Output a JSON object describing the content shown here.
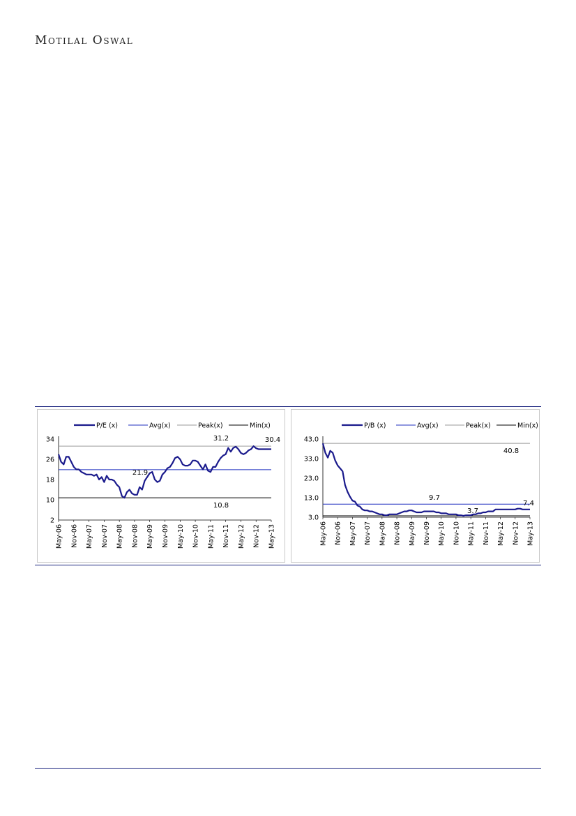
{
  "header": {
    "brand": "Motilal Oswal"
  },
  "chart_data": [
    {
      "type": "line",
      "legend": [
        "P/E (x)",
        "Avg(x)",
        "Peak(x)",
        "Min(x)"
      ],
      "x_tick_labels": [
        "May-06",
        "Nov-06",
        "May-07",
        "Nov-07",
        "May-08",
        "Nov-08",
        "May-09",
        "Nov-09",
        "May-10",
        "Nov-10",
        "May-11",
        "Nov-11",
        "May-12",
        "Nov-12",
        "May-13"
      ],
      "y_tick_labels": [
        "34",
        "26",
        "18",
        "10",
        "2"
      ],
      "ylim": [
        2,
        34
      ],
      "series": [
        {
          "name": "P/E (x)",
          "x": [
            0,
            1,
            2,
            3,
            4,
            5,
            6,
            7,
            8,
            9,
            10,
            11,
            12,
            13,
            14,
            15,
            16,
            17,
            18,
            19,
            20,
            21,
            22,
            23,
            24,
            25,
            26,
            27,
            28,
            29,
            30,
            31,
            32,
            33,
            34,
            35,
            36,
            37,
            38,
            39,
            40,
            41,
            42,
            43,
            44,
            45,
            46,
            47,
            48,
            49,
            50,
            51,
            52,
            53,
            54,
            55,
            56,
            57,
            58,
            59,
            60,
            61,
            62,
            63,
            64,
            65,
            66,
            67,
            68,
            69,
            70,
            71,
            72,
            73,
            74,
            75,
            76,
            77,
            78,
            79,
            80,
            81,
            82,
            83,
            84
          ],
          "values": [
            28.0,
            25.0,
            24.0,
            27.0,
            27.0,
            25.0,
            23.0,
            22.0,
            22.0,
            21.0,
            20.5,
            20.0,
            20.0,
            20.0,
            19.5,
            20.0,
            18.0,
            19.0,
            17.0,
            19.5,
            18.0,
            18.0,
            17.5,
            16.0,
            15.0,
            11.5,
            10.8,
            13.0,
            14.0,
            12.5,
            12.0,
            12.0,
            15.0,
            14.0,
            17.5,
            19.0,
            20.5,
            21.0,
            18.0,
            17.0,
            17.5,
            20.0,
            21.0,
            22.5,
            23.0,
            24.5,
            26.5,
            27.0,
            26.0,
            24.0,
            23.5,
            23.5,
            24.0,
            25.5,
            25.5,
            25.0,
            23.5,
            22.0,
            24.0,
            21.5,
            21.0,
            23.0,
            23.0,
            25.0,
            26.5,
            27.5,
            28.0,
            30.5,
            29.0,
            30.5,
            31.0,
            30.0,
            28.5,
            28.0,
            28.5,
            29.5,
            30.0,
            31.2,
            30.4,
            30.0,
            30.0,
            30.0,
            30.0,
            30.0,
            30.0
          ]
        },
        {
          "name": "Avg(x)",
          "value": 21.9
        },
        {
          "name": "Peak(x)",
          "value": 31.2
        },
        {
          "name": "Min(x)",
          "value": 10.8
        }
      ],
      "annotations": [
        "31.2",
        "30.4",
        "21.9",
        "10.8"
      ]
    },
    {
      "type": "line",
      "legend": [
        "P/B (x)",
        "Avg(x)",
        "Peak(x)",
        "Min(x)"
      ],
      "x_tick_labels": [
        "May-06",
        "Nov-06",
        "May-07",
        "Nov-07",
        "May-08",
        "Nov-08",
        "May-09",
        "Nov-09",
        "May-10",
        "Nov-10",
        "May-11",
        "Nov-11",
        "May-12",
        "Nov-12",
        "May-13"
      ],
      "y_tick_labels": [
        "43.0",
        "33.0",
        "23.0",
        "13.0",
        "3.0"
      ],
      "ylim": [
        3,
        43
      ],
      "series": [
        {
          "name": "P/B (x)",
          "x": [
            0,
            1,
            2,
            3,
            4,
            5,
            6,
            7,
            8,
            9,
            10,
            11,
            12,
            13,
            14,
            15,
            16,
            17,
            18,
            19,
            20,
            21,
            22,
            23,
            24,
            25,
            26,
            27,
            28,
            29,
            30,
            31,
            32,
            33,
            34,
            35,
            36,
            37,
            38,
            39,
            40,
            41,
            42,
            43,
            44,
            45,
            46,
            47,
            48,
            49,
            50,
            51,
            52,
            53,
            54,
            55,
            56,
            57,
            58,
            59,
            60,
            61,
            62,
            63,
            64,
            65,
            66,
            67,
            68,
            69,
            70,
            71,
            72,
            73,
            74,
            75,
            76,
            77,
            78,
            79,
            80,
            81,
            82,
            83,
            84
          ],
          "values": [
            40.8,
            36.0,
            33.5,
            37.0,
            36.0,
            32.0,
            29.5,
            28.0,
            26.5,
            19.5,
            16.0,
            13.5,
            11.5,
            11.0,
            9.0,
            8.5,
            7.0,
            6.5,
            6.5,
            6.0,
            6.0,
            5.5,
            5.0,
            4.5,
            4.5,
            4.0,
            4.0,
            4.5,
            4.5,
            4.5,
            4.5,
            5.0,
            5.5,
            6.0,
            6.0,
            6.5,
            6.5,
            6.0,
            5.5,
            5.5,
            5.5,
            6.0,
            6.0,
            6.0,
            6.0,
            6.0,
            5.5,
            5.5,
            5.0,
            5.0,
            5.0,
            4.5,
            4.5,
            4.5,
            4.5,
            4.0,
            4.0,
            3.7,
            4.0,
            4.0,
            4.0,
            4.5,
            4.5,
            5.0,
            5.0,
            5.5,
            5.5,
            6.0,
            6.0,
            6.0,
            7.0,
            7.0,
            7.0,
            7.0,
            7.0,
            7.0,
            7.0,
            7.0,
            7.0,
            7.4,
            7.4,
            7.0,
            7.0,
            7.0,
            7.0
          ]
        },
        {
          "name": "Avg(x)",
          "value": 9.7
        },
        {
          "name": "Peak(x)",
          "value": 40.8
        },
        {
          "name": "Min(x)",
          "value": 3.7
        }
      ],
      "annotations": [
        "40.8",
        "9.7",
        "3.7",
        "7.4"
      ]
    }
  ]
}
